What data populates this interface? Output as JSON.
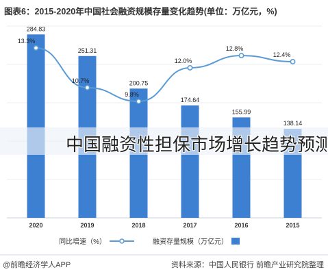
{
  "header": {
    "title": "图表6：2015-2020年中国社会融资规模存量变化趋势(单位：万亿元，%)"
  },
  "overlay_caption": "中国融资性担保市场增长趋势预测",
  "footer": {
    "source": "资料来源：中国人民银行 前瞻产业研究院整理",
    "app": "@前瞻经济学人APP"
  },
  "chart_data": {
    "type": "bar",
    "categories": [
      "2020",
      "2019",
      "2018",
      "2017",
      "2016",
      "2015"
    ],
    "series": [
      {
        "name": "融资存量规模（万亿元）",
        "type": "bar",
        "values": [
          284.83,
          251.31,
          200.75,
          174.64,
          155.99,
          138.14
        ],
        "color": "#3d7fd0"
      },
      {
        "name": "同比增速（%）",
        "type": "line",
        "values": [
          13.3,
          10.7,
          9.8,
          12.0,
          12.8,
          12.4
        ],
        "labels": [
          "13.3%",
          "10.7%",
          "9.8%",
          "12.0%",
          "12.8%",
          "12.4%"
        ],
        "color": "#5b9bd5"
      }
    ],
    "bar_labels": [
      "284.83",
      "251.31",
      "200.75",
      "174.64",
      "155.99",
      "138.14"
    ],
    "bar_ylim": [
      0,
      300
    ],
    "line_ylim": [
      5,
      14
    ],
    "legend_position": "bottom"
  }
}
